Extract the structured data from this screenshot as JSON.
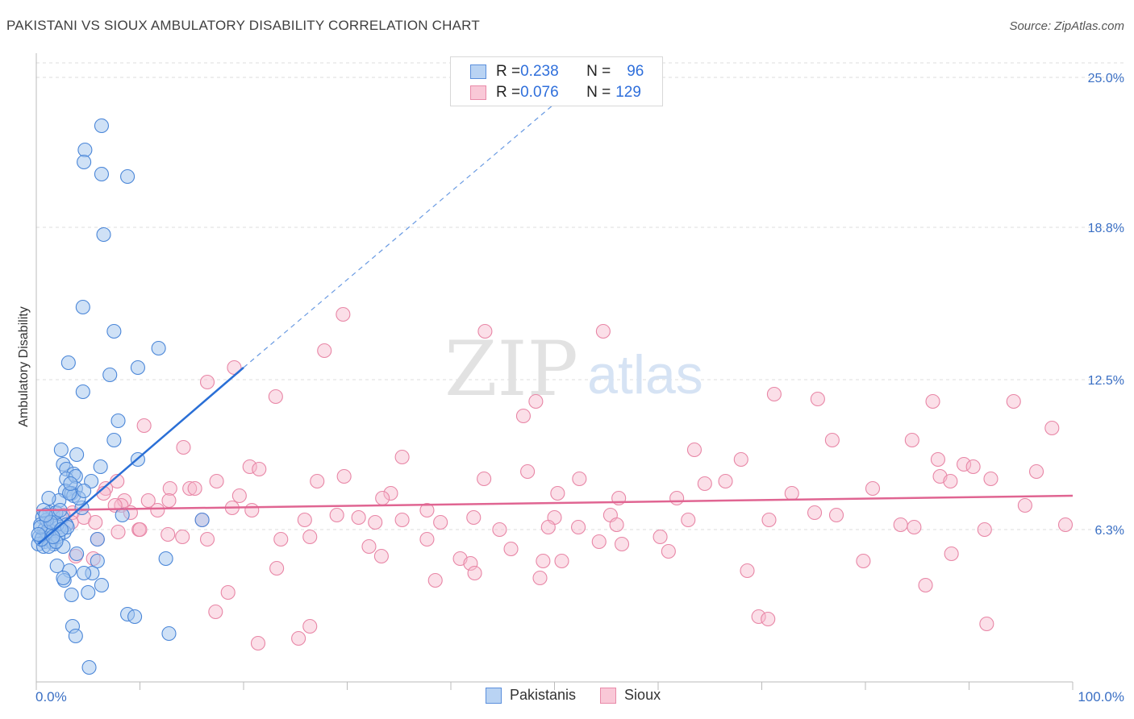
{
  "header": {
    "title": "PAKISTANI VS SIOUX AMBULATORY DISABILITY CORRELATION CHART",
    "source": "Source: ZipAtlas.com"
  },
  "watermark": {
    "zip": "ZIP",
    "atlas": "atlas"
  },
  "legend": {
    "rows": [
      {
        "r_label": "R = ",
        "r_value": "0.238",
        "n_label": "N = ",
        "n_value": "96"
      },
      {
        "r_label": "R = ",
        "r_value": "0.076",
        "n_label": "N = ",
        "n_value": "129"
      }
    ]
  },
  "bottom_legend": {
    "series1": "Pakistanis",
    "series2": "Sioux"
  },
  "colors": {
    "blue_fill": "#9fc3ee",
    "blue_stroke": "#4a86d8",
    "blue_line": "#2a6fd6",
    "pink_fill": "#f6b7cb",
    "pink_stroke": "#e886a6",
    "pink_line": "#e06592",
    "grid": "#dcdcdc",
    "tick_label": "#3a6fc4"
  },
  "chart_data": {
    "type": "scatter",
    "title": "PAKISTANI VS SIOUX AMBULATORY DISABILITY CORRELATION CHART",
    "xlabel": "",
    "ylabel": "Ambulatory Disability",
    "xlim": [
      0,
      100
    ],
    "ylim": [
      0,
      26
    ],
    "x_tick_labels": [
      "0.0%",
      "100.0%"
    ],
    "y_ticks": [
      6.3,
      12.5,
      18.8,
      25.0
    ],
    "y_tick_labels": [
      "6.3%",
      "12.5%",
      "18.8%",
      "25.0%"
    ],
    "series": [
      {
        "name": "Pakistanis",
        "r": 0.238,
        "n": 96,
        "trend": {
          "x0": 0.2,
          "y0": 5.7,
          "x1": 20,
          "y1": 13.0,
          "dash_to_x": 53,
          "dash_to_y": 25.0
        },
        "points": [
          [
            6.3,
            23.0
          ],
          [
            4.7,
            22.0
          ],
          [
            4.6,
            21.5
          ],
          [
            6.3,
            21.0
          ],
          [
            8.8,
            20.9
          ],
          [
            6.5,
            18.5
          ],
          [
            4.5,
            15.5
          ],
          [
            7.5,
            14.5
          ],
          [
            11.8,
            13.8
          ],
          [
            3.1,
            13.2
          ],
          [
            9.8,
            13.0
          ],
          [
            7.1,
            12.7
          ],
          [
            4.5,
            12.0
          ],
          [
            7.9,
            10.8
          ],
          [
            7.5,
            10.0
          ],
          [
            2.4,
            9.6
          ],
          [
            3.9,
            9.4
          ],
          [
            9.8,
            9.2
          ],
          [
            2.6,
            9.0
          ],
          [
            6.2,
            8.9
          ],
          [
            2.9,
            8.8
          ],
          [
            3.6,
            8.6
          ],
          [
            2.9,
            8.4
          ],
          [
            3.8,
            8.5
          ],
          [
            5.3,
            8.3
          ],
          [
            3.8,
            8.0
          ],
          [
            2.8,
            7.9
          ],
          [
            3.4,
            7.8
          ],
          [
            3.6,
            7.7
          ],
          [
            2.2,
            7.5
          ],
          [
            4.4,
            7.2
          ],
          [
            4.1,
            7.6
          ],
          [
            1.2,
            7.6
          ],
          [
            1.3,
            7.0
          ],
          [
            1.6,
            6.9
          ],
          [
            0.6,
            6.8
          ],
          [
            2.5,
            6.8
          ],
          [
            1.8,
            6.6
          ],
          [
            2.9,
            6.5
          ],
          [
            0.4,
            6.5
          ],
          [
            2.2,
            6.4
          ],
          [
            0.8,
            6.3
          ],
          [
            1.2,
            6.3
          ],
          [
            0.9,
            6.1
          ],
          [
            1.5,
            6.1
          ],
          [
            0.3,
            6.0
          ],
          [
            0.6,
            6.0
          ],
          [
            1.2,
            5.9
          ],
          [
            0.8,
            5.8
          ],
          [
            1.5,
            5.8
          ],
          [
            0.2,
            5.7
          ],
          [
            1.7,
            5.7
          ],
          [
            0.7,
            5.6
          ],
          [
            1.2,
            5.6
          ],
          [
            2.7,
            6.2
          ],
          [
            2.0,
            6.5
          ],
          [
            1.0,
            6.7
          ],
          [
            8.3,
            6.9
          ],
          [
            16.0,
            6.7
          ],
          [
            5.9,
            5.9
          ],
          [
            3.9,
            5.3
          ],
          [
            5.9,
            5.0
          ],
          [
            12.5,
            5.1
          ],
          [
            2.0,
            4.8
          ],
          [
            3.2,
            4.6
          ],
          [
            5.4,
            4.5
          ],
          [
            4.6,
            4.5
          ],
          [
            2.7,
            4.2
          ],
          [
            2.6,
            4.3
          ],
          [
            6.3,
            4.0
          ],
          [
            5.0,
            3.7
          ],
          [
            3.4,
            3.6
          ],
          [
            8.8,
            2.8
          ],
          [
            9.5,
            2.7
          ],
          [
            3.5,
            2.3
          ],
          [
            3.8,
            1.9
          ],
          [
            12.8,
            2.0
          ],
          [
            5.1,
            0.6
          ],
          [
            3.2,
            7.8
          ],
          [
            4.6,
            7.9
          ],
          [
            2.1,
            6.0
          ],
          [
            1.0,
            6.2
          ],
          [
            0.5,
            5.9
          ],
          [
            1.9,
            7.0
          ],
          [
            3.0,
            6.4
          ],
          [
            2.3,
            7.1
          ],
          [
            0.4,
            6.4
          ],
          [
            1.4,
            6.6
          ],
          [
            2.6,
            5.6
          ],
          [
            3.3,
            8.2
          ],
          [
            0.7,
            7.1
          ],
          [
            1.9,
            5.8
          ],
          [
            2.4,
            6.3
          ],
          [
            0.9,
            6.9
          ],
          [
            1.6,
            6.0
          ],
          [
            0.2,
            6.1
          ]
        ]
      },
      {
        "name": "Sioux",
        "r": 0.076,
        "n": 129,
        "trend": {
          "x0": 0,
          "y0": 7.1,
          "x1": 100,
          "y1": 7.7
        },
        "points": [
          [
            29.6,
            15.2
          ],
          [
            43.3,
            14.5
          ],
          [
            54.7,
            14.5
          ],
          [
            27.8,
            13.7
          ],
          [
            19.1,
            13.0
          ],
          [
            16.5,
            12.4
          ],
          [
            23.1,
            11.8
          ],
          [
            48.2,
            11.6
          ],
          [
            71.2,
            11.9
          ],
          [
            75.4,
            11.7
          ],
          [
            86.5,
            11.6
          ],
          [
            94.3,
            11.6
          ],
          [
            47.0,
            11.0
          ],
          [
            10.4,
            10.6
          ],
          [
            98.0,
            10.5
          ],
          [
            76.8,
            10.0
          ],
          [
            84.5,
            10.0
          ],
          [
            63.5,
            9.6
          ],
          [
            14.2,
            9.7
          ],
          [
            35.3,
            9.3
          ],
          [
            68.0,
            9.2
          ],
          [
            87.0,
            9.2
          ],
          [
            89.5,
            9.0
          ],
          [
            20.6,
            8.9
          ],
          [
            21.5,
            8.8
          ],
          [
            90.4,
            8.9
          ],
          [
            96.5,
            8.7
          ],
          [
            47.4,
            8.7
          ],
          [
            29.7,
            8.5
          ],
          [
            43.2,
            8.4
          ],
          [
            52.4,
            8.4
          ],
          [
            7.8,
            8.3
          ],
          [
            17.4,
            8.3
          ],
          [
            27.1,
            8.3
          ],
          [
            64.5,
            8.2
          ],
          [
            66.5,
            8.3
          ],
          [
            87.2,
            8.5
          ],
          [
            88.2,
            8.3
          ],
          [
            92.1,
            8.4
          ],
          [
            80.7,
            8.0
          ],
          [
            6.7,
            8.0
          ],
          [
            12.9,
            8.0
          ],
          [
            14.8,
            8.0
          ],
          [
            34.2,
            7.8
          ],
          [
            50.3,
            7.8
          ],
          [
            61.8,
            7.6
          ],
          [
            72.9,
            7.8
          ],
          [
            6.5,
            7.8
          ],
          [
            19.6,
            7.7
          ],
          [
            33.4,
            7.6
          ],
          [
            56.2,
            7.6
          ],
          [
            95.4,
            7.3
          ],
          [
            8.5,
            7.5
          ],
          [
            10.8,
            7.5
          ],
          [
            12.8,
            7.5
          ],
          [
            8.2,
            7.3
          ],
          [
            11.7,
            7.1
          ],
          [
            18.9,
            7.2
          ],
          [
            20.8,
            7.1
          ],
          [
            3.5,
            7.0
          ],
          [
            4.6,
            6.8
          ],
          [
            9.1,
            7.0
          ],
          [
            29.0,
            6.9
          ],
          [
            37.7,
            7.1
          ],
          [
            42.2,
            6.8
          ],
          [
            50.0,
            6.8
          ],
          [
            55.4,
            6.9
          ],
          [
            75.1,
            7.0
          ],
          [
            77.2,
            6.9
          ],
          [
            31.1,
            6.8
          ],
          [
            35.3,
            6.7
          ],
          [
            3.4,
            6.6
          ],
          [
            5.7,
            6.6
          ],
          [
            25.9,
            6.7
          ],
          [
            32.7,
            6.6
          ],
          [
            39.0,
            6.6
          ],
          [
            62.9,
            6.7
          ],
          [
            70.7,
            6.7
          ],
          [
            16.0,
            6.7
          ],
          [
            56.0,
            6.5
          ],
          [
            49.4,
            6.4
          ],
          [
            52.3,
            6.4
          ],
          [
            83.4,
            6.5
          ],
          [
            99.3,
            6.5
          ],
          [
            84.7,
            6.4
          ],
          [
            91.5,
            6.3
          ],
          [
            9.9,
            6.3
          ],
          [
            44.7,
            6.3
          ],
          [
            7.9,
            6.2
          ],
          [
            14.1,
            6.0
          ],
          [
            5.9,
            5.9
          ],
          [
            12.7,
            6.1
          ],
          [
            16.5,
            5.9
          ],
          [
            23.6,
            5.9
          ],
          [
            26.4,
            6.0
          ],
          [
            37.7,
            5.9
          ],
          [
            60.2,
            6.0
          ],
          [
            56.5,
            5.7
          ],
          [
            54.3,
            5.8
          ],
          [
            32.1,
            5.6
          ],
          [
            45.8,
            5.5
          ],
          [
            61.0,
            5.4
          ],
          [
            88.3,
            5.3
          ],
          [
            3.8,
            5.2
          ],
          [
            5.5,
            5.1
          ],
          [
            33.3,
            5.2
          ],
          [
            40.9,
            5.1
          ],
          [
            41.9,
            4.9
          ],
          [
            48.9,
            5.0
          ],
          [
            50.7,
            5.0
          ],
          [
            79.8,
            5.0
          ],
          [
            23.2,
            4.7
          ],
          [
            42.3,
            4.5
          ],
          [
            68.6,
            4.6
          ],
          [
            38.5,
            4.2
          ],
          [
            48.6,
            4.3
          ],
          [
            85.8,
            4.0
          ],
          [
            18.5,
            3.7
          ],
          [
            17.3,
            2.9
          ],
          [
            69.7,
            2.7
          ],
          [
            70.6,
            2.6
          ],
          [
            26.4,
            2.3
          ],
          [
            91.7,
            2.4
          ],
          [
            25.3,
            1.8
          ],
          [
            21.4,
            1.6
          ],
          [
            10.0,
            6.3
          ],
          [
            15.3,
            8.0
          ],
          [
            2.6,
            6.9
          ],
          [
            7.6,
            7.3
          ]
        ]
      }
    ]
  }
}
